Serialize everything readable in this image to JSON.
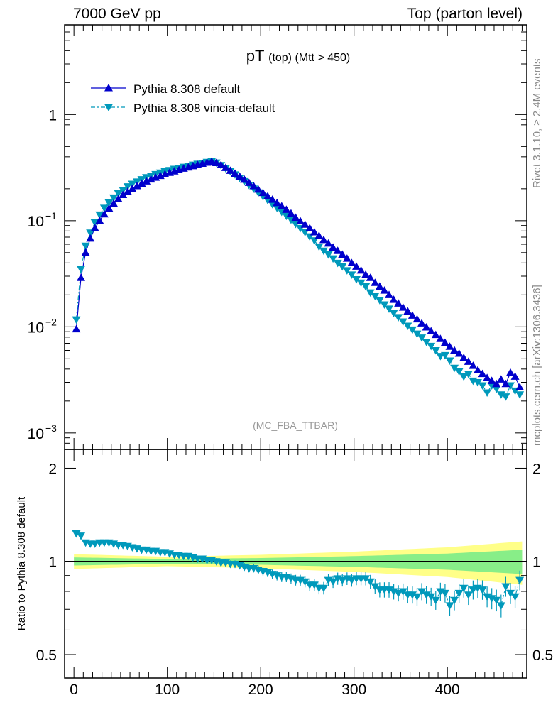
{
  "header": {
    "left": "7000 GeV pp",
    "right": "Top (parton level)"
  },
  "side_labels": {
    "rivet": "Rivet 3.1.10, ≥ 2.4M events",
    "mcplots": "mcplots.cern.ch [arXiv:1306.3436]"
  },
  "colors": {
    "default": "#0000cc",
    "vincia": "#0099bb",
    "band_yellow": "#ffff88",
    "band_green": "#88ee88"
  },
  "chart_data": [
    {
      "type": "line",
      "title": "pT",
      "title_small": "(top) (Mtt > 450)",
      "analysis_label": "(MC_FBA_TTBAR)",
      "xlim": [
        -10,
        485
      ],
      "ylim": [
        0.0007,
        7
      ],
      "log_y": true,
      "y_ticks": [
        {
          "value": 1,
          "label": "1"
        },
        {
          "value": 0.1,
          "label": "10",
          "exp": "−1"
        },
        {
          "value": 0.01,
          "label": "10",
          "exp": "−2"
        },
        {
          "value": 0.001,
          "label": "10",
          "exp": "−3"
        }
      ],
      "legend_position": "top-left",
      "x": [
        2.5,
        7.5,
        12.5,
        17.5,
        22.5,
        27.5,
        32.5,
        37.5,
        42.5,
        47.5,
        52.5,
        57.5,
        62.5,
        67.5,
        72.5,
        77.5,
        82.5,
        87.5,
        92.5,
        97.5,
        102.5,
        107.5,
        112.5,
        117.5,
        122.5,
        127.5,
        132.5,
        137.5,
        142.5,
        147.5,
        152.5,
        157.5,
        162.5,
        167.5,
        172.5,
        177.5,
        182.5,
        187.5,
        192.5,
        197.5,
        202.5,
        207.5,
        212.5,
        217.5,
        222.5,
        227.5,
        232.5,
        237.5,
        242.5,
        247.5,
        252.5,
        257.5,
        262.5,
        267.5,
        272.5,
        277.5,
        282.5,
        287.5,
        292.5,
        297.5,
        302.5,
        307.5,
        312.5,
        317.5,
        322.5,
        327.5,
        332.5,
        337.5,
        342.5,
        347.5,
        352.5,
        357.5,
        362.5,
        367.5,
        372.5,
        377.5,
        382.5,
        387.5,
        392.5,
        397.5,
        402.5,
        407.5,
        412.5,
        417.5,
        422.5,
        427.5,
        432.5,
        437.5,
        442.5,
        447.5,
        452.5,
        457.5,
        462.5,
        467.5,
        472.5,
        477.5
      ],
      "series": [
        {
          "name": "Pythia 8.308 default",
          "marker": "triangle-up",
          "values": [
            0.0095,
            0.029,
            0.05,
            0.068,
            0.085,
            0.1,
            0.115,
            0.13,
            0.145,
            0.16,
            0.175,
            0.188,
            0.2,
            0.212,
            0.224,
            0.235,
            0.245,
            0.255,
            0.265,
            0.274,
            0.283,
            0.292,
            0.3,
            0.31,
            0.318,
            0.327,
            0.336,
            0.345,
            0.353,
            0.36,
            0.35,
            0.335,
            0.315,
            0.296,
            0.278,
            0.261,
            0.244,
            0.228,
            0.212,
            0.197,
            0.183,
            0.17,
            0.158,
            0.147,
            0.137,
            0.127,
            0.117,
            0.107,
            0.099,
            0.092,
            0.085,
            0.078,
            0.072,
            0.066,
            0.061,
            0.056,
            0.052,
            0.048,
            0.044,
            0.04,
            0.037,
            0.034,
            0.031,
            0.029,
            0.026,
            0.024,
            0.022,
            0.02,
            0.018,
            0.0166,
            0.0152,
            0.014,
            0.0128,
            0.0118,
            0.0108,
            0.0099,
            0.0091,
            0.0084,
            0.0077,
            0.0071,
            0.0065,
            0.006,
            0.0056,
            0.0051,
            0.0047,
            0.0043,
            0.0039,
            0.0036,
            0.0033,
            0.0031,
            0.0029,
            0.0032,
            0.0029,
            0.0037,
            0.0034,
            0.0027
          ]
        },
        {
          "name": "Pythia 8.308 vincia-default",
          "marker": "triangle-down",
          "values": [
            0.0117,
            0.035,
            0.058,
            0.077,
            0.096,
            0.114,
            0.132,
            0.148,
            0.165,
            0.181,
            0.195,
            0.21,
            0.222,
            0.233,
            0.245,
            0.256,
            0.265,
            0.274,
            0.283,
            0.291,
            0.299,
            0.307,
            0.314,
            0.321,
            0.328,
            0.336,
            0.343,
            0.35,
            0.357,
            0.363,
            0.352,
            0.333,
            0.312,
            0.292,
            0.272,
            0.253,
            0.235,
            0.217,
            0.2,
            0.184,
            0.169,
            0.156,
            0.143,
            0.132,
            0.121,
            0.111,
            0.102,
            0.093,
            0.085,
            0.078,
            0.071,
            0.065,
            0.057,
            0.052,
            0.048,
            0.044,
            0.04,
            0.037,
            0.034,
            0.031,
            0.028,
            0.026,
            0.024,
            0.021,
            0.0195,
            0.0178,
            0.0162,
            0.0148,
            0.0135,
            0.0123,
            0.0112,
            0.0102,
            0.0094,
            0.0086,
            0.0079,
            0.0072,
            0.0066,
            0.006,
            0.0053,
            0.0054,
            0.0048,
            0.0041,
            0.0038,
            0.0034,
            0.0036,
            0.0031,
            0.003,
            0.0028,
            0.0024,
            0.0028,
            0.0026,
            0.0023,
            0.0022,
            0.0028,
            0.0025,
            0.0023
          ]
        }
      ]
    },
    {
      "type": "line",
      "ylabel": "Ratio to Pythia 8.308 default",
      "xlim": [
        -10,
        485
      ],
      "ylim": [
        0.42,
        2.3
      ],
      "log_y": true,
      "x_ticks": [
        0,
        100,
        200,
        300,
        400
      ],
      "y_ticks": [
        {
          "value": 0.5,
          "label": "0.5"
        },
        {
          "value": 1,
          "label": "1"
        },
        {
          "value": 2,
          "label": "2"
        }
      ],
      "reference_line": 1,
      "x": [
        2.5,
        7.5,
        12.5,
        17.5,
        22.5,
        27.5,
        32.5,
        37.5,
        42.5,
        47.5,
        52.5,
        57.5,
        62.5,
        67.5,
        72.5,
        77.5,
        82.5,
        87.5,
        92.5,
        97.5,
        102.5,
        107.5,
        112.5,
        117.5,
        122.5,
        127.5,
        132.5,
        137.5,
        142.5,
        147.5,
        152.5,
        157.5,
        162.5,
        167.5,
        172.5,
        177.5,
        182.5,
        187.5,
        192.5,
        197.5,
        202.5,
        207.5,
        212.5,
        217.5,
        222.5,
        227.5,
        232.5,
        237.5,
        242.5,
        247.5,
        252.5,
        257.5,
        262.5,
        267.5,
        272.5,
        277.5,
        282.5,
        287.5,
        292.5,
        297.5,
        302.5,
        307.5,
        312.5,
        317.5,
        322.5,
        327.5,
        332.5,
        337.5,
        342.5,
        347.5,
        352.5,
        357.5,
        362.5,
        367.5,
        372.5,
        377.5,
        382.5,
        387.5,
        392.5,
        397.5,
        402.5,
        407.5,
        412.5,
        417.5,
        422.5,
        427.5,
        432.5,
        437.5,
        442.5,
        447.5,
        452.5,
        457.5,
        462.5,
        467.5,
        472.5,
        477.5
      ],
      "band_yellow_halfwidth": {
        "x": [
          0,
          100,
          200,
          300,
          400,
          480
        ],
        "values": [
          0.055,
          0.035,
          0.05,
          0.075,
          0.11,
          0.16
        ]
      },
      "band_green_halfwidth": {
        "x": [
          0,
          100,
          200,
          300,
          400,
          480
        ],
        "values": [
          0.03,
          0.018,
          0.025,
          0.04,
          0.06,
          0.09
        ]
      },
      "series": [
        {
          "name": "Pythia 8.308 vincia-default",
          "marker": "triangle-down",
          "values": [
            1.23,
            1.21,
            1.15,
            1.14,
            1.14,
            1.15,
            1.15,
            1.15,
            1.14,
            1.13,
            1.13,
            1.12,
            1.11,
            1.1,
            1.09,
            1.09,
            1.08,
            1.08,
            1.07,
            1.07,
            1.06,
            1.05,
            1.05,
            1.04,
            1.04,
            1.03,
            1.02,
            1.02,
            1.01,
            1.01,
            1.0,
            0.99,
            0.99,
            0.98,
            0.98,
            0.97,
            0.96,
            0.95,
            0.95,
            0.94,
            0.93,
            0.92,
            0.91,
            0.9,
            0.89,
            0.89,
            0.88,
            0.87,
            0.87,
            0.86,
            0.84,
            0.84,
            0.82,
            0.82,
            0.87,
            0.86,
            0.88,
            0.87,
            0.88,
            0.87,
            0.88,
            0.88,
            0.88,
            0.86,
            0.83,
            0.81,
            0.81,
            0.81,
            0.8,
            0.79,
            0.8,
            0.78,
            0.78,
            0.77,
            0.8,
            0.78,
            0.77,
            0.75,
            0.8,
            0.79,
            0.72,
            0.75,
            0.79,
            0.82,
            0.78,
            0.81,
            0.82,
            0.81,
            0.77,
            0.76,
            0.75,
            0.72,
            0.83,
            0.79,
            0.77,
            0.87
          ]
        }
      ]
    }
  ]
}
